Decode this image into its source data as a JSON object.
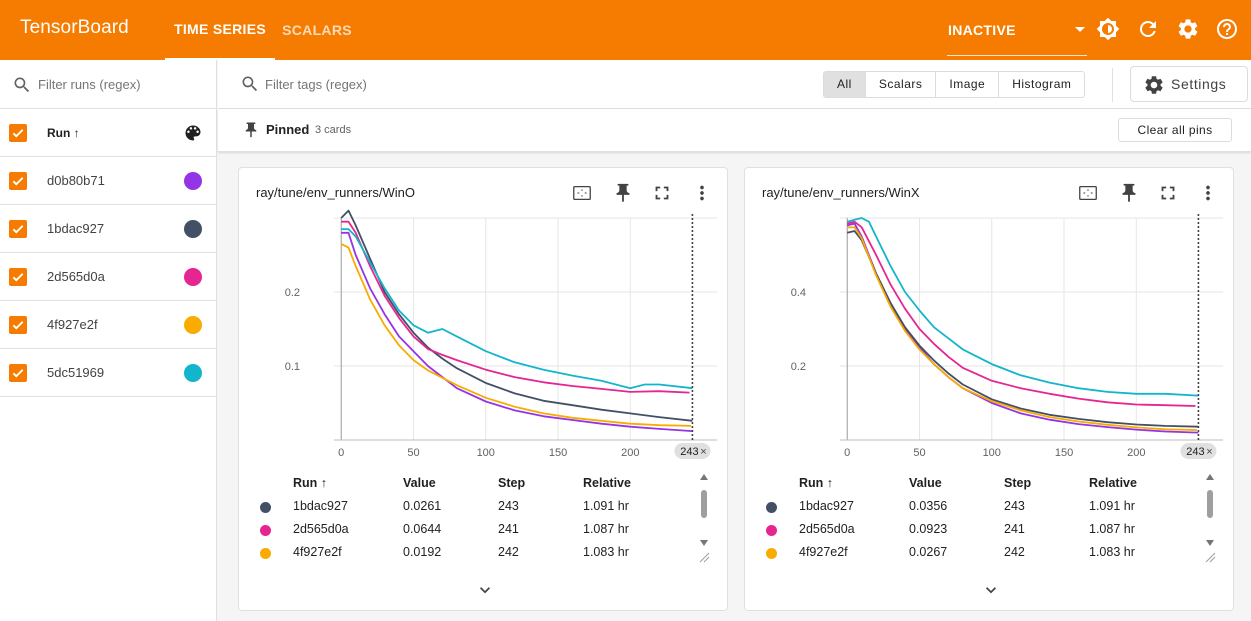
{
  "app": {
    "title": "TensorBoard"
  },
  "tabs": [
    {
      "label": "TIME SERIES",
      "active": true
    },
    {
      "label": "SCALARS",
      "active": false
    }
  ],
  "status_select": {
    "value": "INACTIVE"
  },
  "header_icons": [
    "brightness-icon",
    "refresh-icon",
    "gear-icon",
    "help-icon"
  ],
  "sidebar": {
    "filter_placeholder": "Filter runs (regex)",
    "header": "Run ↑",
    "runs": [
      {
        "name": "d0b80b71",
        "color": "#9334e6"
      },
      {
        "name": "1bdac927",
        "color": "#425066"
      },
      {
        "name": "2d565d0a",
        "color": "#e52592"
      },
      {
        "name": "4f927e2f",
        "color": "#f9ab00"
      },
      {
        "name": "5dc51969",
        "color": "#12b5cb"
      }
    ]
  },
  "toolbar": {
    "filter_placeholder": "Filter tags (regex)",
    "segments": [
      {
        "label": "All",
        "active": true
      },
      {
        "label": "Scalars",
        "active": false
      },
      {
        "label": "Image",
        "active": false
      },
      {
        "label": "Histogram",
        "active": false
      }
    ],
    "settings_label": "Settings"
  },
  "pinned": {
    "title": "Pinned",
    "count": "3 cards",
    "clear_label": "Clear all pins"
  },
  "table_headers": {
    "run": "Run ↑",
    "value": "Value",
    "step": "Step",
    "relative": "Relative"
  },
  "cards": [
    {
      "title": "ray/tune/env_runners/WinO",
      "step_marker": "243",
      "rows": [
        {
          "run": "1bdac927",
          "value": "0.0261",
          "step": "243",
          "relative": "1.091 hr",
          "color": "#425066"
        },
        {
          "run": "2d565d0a",
          "value": "0.0644",
          "step": "241",
          "relative": "1.087 hr",
          "color": "#e52592"
        },
        {
          "run": "4f927e2f",
          "value": "0.0192",
          "step": "242",
          "relative": "1.083 hr",
          "color": "#f9ab00"
        }
      ],
      "chart_data": {
        "type": "line",
        "xlim": [
          -5,
          260
        ],
        "ylim": [
          0.0,
          0.3
        ],
        "xticks": [
          0,
          50,
          100,
          150,
          200
        ],
        "yticks": [
          0.1,
          0.2
        ],
        "ytick_labels": [
          "0.1",
          "0.2"
        ],
        "series": [
          {
            "color": "#9334e6",
            "x": [
              0,
              5,
              10,
              20,
              30,
              40,
              50,
              60,
              70,
              80,
              100,
              120,
              140,
              160,
              180,
              200,
              220,
              243
            ],
            "y": [
              0.28,
              0.28,
              0.25,
              0.205,
              0.17,
              0.14,
              0.12,
              0.1,
              0.085,
              0.07,
              0.052,
              0.04,
              0.032,
              0.027,
              0.022,
              0.018,
              0.015,
              0.012
            ]
          },
          {
            "color": "#425066",
            "x": [
              0,
              5,
              10,
              20,
              30,
              40,
              50,
              60,
              70,
              80,
              100,
              120,
              140,
              160,
              180,
              200,
              220,
              243
            ],
            "y": [
              0.3,
              0.31,
              0.29,
              0.245,
              0.2,
              0.17,
              0.145,
              0.125,
              0.11,
              0.097,
              0.077,
              0.063,
              0.053,
              0.047,
              0.041,
              0.036,
              0.031,
              0.026
            ]
          },
          {
            "color": "#e52592",
            "x": [
              0,
              5,
              10,
              20,
              30,
              40,
              50,
              60,
              70,
              80,
              100,
              120,
              140,
              160,
              180,
              200,
              220,
              241
            ],
            "y": [
              0.295,
              0.295,
              0.28,
              0.235,
              0.195,
              0.165,
              0.14,
              0.123,
              0.115,
              0.108,
              0.095,
              0.085,
              0.078,
              0.073,
              0.069,
              0.065,
              0.066,
              0.064
            ]
          },
          {
            "color": "#f9ab00",
            "x": [
              0,
              5,
              10,
              20,
              30,
              40,
              50,
              60,
              70,
              80,
              100,
              120,
              140,
              160,
              180,
              200,
              220,
              242
            ],
            "y": [
              0.265,
              0.26,
              0.235,
              0.19,
              0.155,
              0.128,
              0.108,
              0.094,
              0.084,
              0.074,
              0.057,
              0.045,
              0.036,
              0.03,
              0.026,
              0.022,
              0.02,
              0.019
            ]
          },
          {
            "color": "#12b5cb",
            "x": [
              0,
              5,
              10,
              20,
              30,
              40,
              50,
              60,
              70,
              80,
              100,
              120,
              140,
              160,
              180,
              200,
              210,
              220,
              243
            ],
            "y": [
              0.285,
              0.285,
              0.275,
              0.24,
              0.205,
              0.175,
              0.155,
              0.145,
              0.15,
              0.14,
              0.12,
              0.105,
              0.095,
              0.087,
              0.08,
              0.07,
              0.075,
              0.075,
              0.07
            ]
          }
        ]
      }
    },
    {
      "title": "ray/tune/env_runners/WinX",
      "step_marker": "243",
      "rows": [
        {
          "run": "1bdac927",
          "value": "0.0356",
          "step": "243",
          "relative": "1.091 hr",
          "color": "#425066"
        },
        {
          "run": "2d565d0a",
          "value": "0.0923",
          "step": "241",
          "relative": "1.087 hr",
          "color": "#e52592"
        },
        {
          "run": "4f927e2f",
          "value": "0.0267",
          "step": "242",
          "relative": "1.083 hr",
          "color": "#f9ab00"
        }
      ],
      "chart_data": {
        "type": "line",
        "xlim": [
          -5,
          260
        ],
        "ylim": [
          0.0,
          0.6
        ],
        "xticks": [
          0,
          50,
          100,
          150,
          200
        ],
        "yticks": [
          0.2,
          0.4
        ],
        "ytick_labels": [
          "0.2",
          "0.4"
        ],
        "series": [
          {
            "color": "#9334e6",
            "x": [
              0,
              5,
              10,
              20,
              30,
              40,
              50,
              60,
              70,
              80,
              100,
              120,
              140,
              160,
              180,
              200,
              220,
              243
            ],
            "y": [
              0.58,
              0.585,
              0.55,
              0.45,
              0.37,
              0.3,
              0.25,
              0.205,
              0.17,
              0.14,
              0.1,
              0.072,
              0.055,
              0.043,
              0.035,
              0.028,
              0.023,
              0.02
            ]
          },
          {
            "color": "#425066",
            "x": [
              0,
              5,
              10,
              20,
              30,
              40,
              50,
              60,
              70,
              80,
              100,
              120,
              140,
              160,
              180,
              200,
              220,
              243
            ],
            "y": [
              0.56,
              0.565,
              0.54,
              0.45,
              0.37,
              0.305,
              0.255,
              0.215,
              0.18,
              0.15,
              0.11,
              0.085,
              0.068,
              0.057,
              0.048,
              0.042,
              0.038,
              0.036
            ]
          },
          {
            "color": "#e52592",
            "x": [
              0,
              5,
              10,
              20,
              30,
              40,
              50,
              60,
              70,
              80,
              100,
              120,
              140,
              160,
              180,
              200,
              220,
              241
            ],
            "y": [
              0.585,
              0.59,
              0.575,
              0.5,
              0.42,
              0.355,
              0.3,
              0.26,
              0.225,
              0.195,
              0.16,
              0.14,
              0.125,
              0.112,
              0.102,
              0.096,
              0.094,
              0.092
            ]
          },
          {
            "color": "#f9ab00",
            "x": [
              0,
              5,
              10,
              20,
              30,
              40,
              50,
              60,
              70,
              80,
              100,
              120,
              140,
              160,
              180,
              200,
              220,
              242
            ],
            "y": [
              0.575,
              0.575,
              0.545,
              0.445,
              0.36,
              0.295,
              0.245,
              0.205,
              0.17,
              0.14,
              0.105,
              0.08,
              0.062,
              0.05,
              0.041,
              0.034,
              0.029,
              0.027
            ]
          },
          {
            "color": "#12b5cb",
            "x": [
              0,
              5,
              10,
              15,
              20,
              30,
              40,
              50,
              60,
              70,
              80,
              100,
              120,
              140,
              160,
              180,
              200,
              220,
              243
            ],
            "y": [
              0.59,
              0.595,
              0.6,
              0.59,
              0.55,
              0.47,
              0.4,
              0.35,
              0.305,
              0.275,
              0.245,
              0.205,
              0.175,
              0.155,
              0.14,
              0.13,
              0.125,
              0.125,
              0.12
            ]
          }
        ]
      }
    }
  ]
}
